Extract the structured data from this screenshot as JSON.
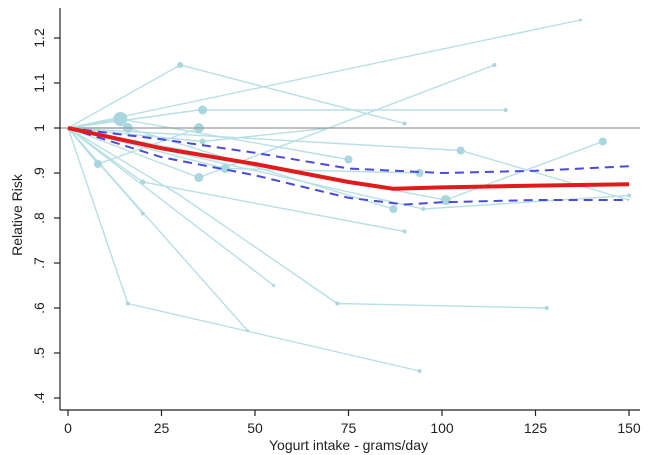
{
  "chart_data": {
    "type": "line",
    "title": "",
    "xlabel": "Yogurt intake - grams/day",
    "ylabel": "Relative Risk",
    "xlim": [
      0,
      150
    ],
    "ylim": [
      0.4,
      1.25
    ],
    "x_ticks": [
      0,
      25,
      50,
      75,
      100,
      125,
      150
    ],
    "x_tick_labels": [
      "0",
      "25",
      "50",
      "75",
      "100",
      "125",
      "150"
    ],
    "y_ticks": [
      0.4,
      0.5,
      0.6,
      0.7,
      0.8,
      0.9,
      1.0,
      1.1,
      1.2
    ],
    "y_tick_labels": [
      ".4",
      ".5",
      ".6",
      ".7",
      ".8",
      ".9",
      "1",
      "1.1",
      "1.2"
    ],
    "reference_line": 1.0,
    "grid": false,
    "colors": {
      "pooled": "#e31a1c",
      "ci": "#4a4ae0",
      "studies": "#b7dfe6",
      "points": "#a9d6df",
      "reference": "#9a9a9a",
      "axis": "#222222"
    },
    "pooled_curve": {
      "x": [
        0,
        25,
        50,
        75,
        87,
        100,
        125,
        150
      ],
      "y": [
        1.0,
        0.955,
        0.92,
        0.88,
        0.865,
        0.868,
        0.872,
        0.875
      ]
    },
    "ci_lower": {
      "x": [
        0,
        25,
        50,
        75,
        90,
        100,
        125,
        150
      ],
      "y": [
        1.0,
        0.935,
        0.895,
        0.845,
        0.83,
        0.835,
        0.84,
        0.84
      ]
    },
    "ci_upper": {
      "x": [
        0,
        25,
        50,
        75,
        100,
        125,
        150
      ],
      "y": [
        1.0,
        0.975,
        0.945,
        0.91,
        0.9,
        0.905,
        0.915
      ]
    },
    "studies": [
      {
        "x": [
          0,
          16,
          87
        ],
        "y": [
          1.0,
          1.0,
          0.82
        ]
      },
      {
        "x": [
          0,
          30,
          90
        ],
        "y": [
          1.0,
          1.14,
          1.01
        ]
      },
      {
        "x": [
          0,
          35,
          117
        ],
        "y": [
          1.0,
          1.04,
          1.04
        ]
      },
      {
        "x": [
          0,
          35,
          114
        ],
        "y": [
          1.0,
          0.89,
          1.14
        ]
      },
      {
        "x": [
          0,
          14,
          75
        ],
        "y": [
          1.0,
          1.02,
          0.93
        ]
      },
      {
        "x": [
          0,
          20,
          90
        ],
        "y": [
          1.0,
          0.88,
          0.77
        ]
      },
      {
        "x": [
          0,
          8,
          35
        ],
        "y": [
          1.0,
          0.92,
          1.0
        ]
      },
      {
        "x": [
          0,
          30,
          72,
          128
        ],
        "y": [
          1.0,
          0.85,
          0.61,
          0.6
        ]
      },
      {
        "x": [
          0,
          16,
          94
        ],
        "y": [
          1.0,
          0.61,
          0.46
        ]
      },
      {
        "x": [
          0,
          42,
          94
        ],
        "y": [
          1.0,
          0.91,
          0.9
        ]
      },
      {
        "x": [
          0,
          95,
          150
        ],
        "y": [
          1.0,
          0.82,
          0.85
        ]
      },
      {
        "x": [
          0,
          36,
          70
        ],
        "y": [
          1.0,
          0.97,
          1.0
        ]
      },
      {
        "x": [
          0,
          101,
          143
        ],
        "y": [
          1.0,
          0.84,
          0.97
        ]
      },
      {
        "x": [
          0,
          105,
          150
        ],
        "y": [
          1.0,
          0.95,
          0.84
        ]
      },
      {
        "x": [
          0,
          20
        ],
        "y": [
          1.0,
          0.81
        ]
      },
      {
        "x": [
          0,
          55
        ],
        "y": [
          1.0,
          0.65
        ]
      },
      {
        "x": [
          0,
          48
        ],
        "y": [
          1.0,
          0.55
        ]
      },
      {
        "x": [
          0,
          137
        ],
        "y": [
          1.0,
          1.24
        ]
      }
    ],
    "points": [
      {
        "x": 14,
        "y": 1.02,
        "size": 7
      },
      {
        "x": 16,
        "y": 1.0,
        "size": 5
      },
      {
        "x": 35,
        "y": 1.0,
        "size": 5
      },
      {
        "x": 36,
        "y": 1.04,
        "size": 4.5
      },
      {
        "x": 35,
        "y": 0.89,
        "size": 4.5
      },
      {
        "x": 30,
        "y": 1.14,
        "size": 3
      },
      {
        "x": 8,
        "y": 0.92,
        "size": 4
      },
      {
        "x": 20,
        "y": 0.88,
        "size": 2.5
      },
      {
        "x": 20,
        "y": 0.81,
        "size": 2
      },
      {
        "x": 36,
        "y": 0.97,
        "size": 3
      },
      {
        "x": 42,
        "y": 0.91,
        "size": 4.5
      },
      {
        "x": 75,
        "y": 0.93,
        "size": 4
      },
      {
        "x": 87,
        "y": 0.82,
        "size": 4
      },
      {
        "x": 94,
        "y": 0.9,
        "size": 4
      },
      {
        "x": 101,
        "y": 0.84,
        "size": 5
      },
      {
        "x": 105,
        "y": 0.95,
        "size": 4
      },
      {
        "x": 143,
        "y": 0.97,
        "size": 4
      },
      {
        "x": 90,
        "y": 1.01,
        "size": 2
      },
      {
        "x": 114,
        "y": 1.14,
        "size": 2
      },
      {
        "x": 117,
        "y": 1.04,
        "size": 2
      },
      {
        "x": 90,
        "y": 0.77,
        "size": 2
      },
      {
        "x": 72,
        "y": 0.61,
        "size": 2
      },
      {
        "x": 128,
        "y": 0.6,
        "size": 2
      },
      {
        "x": 94,
        "y": 0.46,
        "size": 2
      },
      {
        "x": 16,
        "y": 0.61,
        "size": 2
      },
      {
        "x": 55,
        "y": 0.65,
        "size": 1.5
      },
      {
        "x": 48,
        "y": 0.55,
        "size": 1.5
      },
      {
        "x": 137,
        "y": 1.24,
        "size": 1.5
      },
      {
        "x": 95,
        "y": 0.82,
        "size": 2
      },
      {
        "x": 150,
        "y": 0.85,
        "size": 2
      }
    ]
  }
}
